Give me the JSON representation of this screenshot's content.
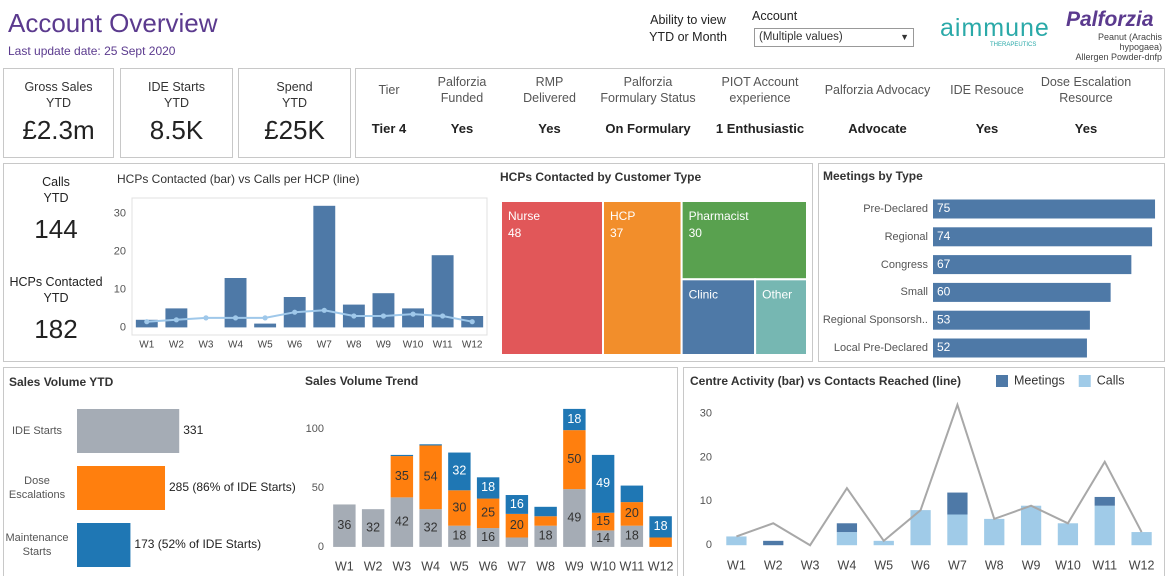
{
  "header": {
    "title": "Account Overview",
    "subtitle": "Last update date: 25 Sept 2020",
    "view_note": "Ability to view\nYTD or Month",
    "account_label": "Account",
    "account_value": "(Multiple values)",
    "logo_1": "aimmune",
    "logo_1_sub": "THERAPEUTICS",
    "logo_2": "Palforzia",
    "logo_2_sub": "Peanut (Arachis hypogaea)\nAllergen Powder-dnfp"
  },
  "kpis": [
    {
      "label": "Gross Sales\nYTD",
      "value": "£2.3m"
    },
    {
      "label": "IDE Starts\nYTD",
      "value": "8.5K"
    },
    {
      "label": "Spend\nYTD",
      "value": "£25K"
    }
  ],
  "attributes": [
    {
      "label": "Tier",
      "value": "Tier 4"
    },
    {
      "label": "Palforzia\nFunded",
      "value": "Yes"
    },
    {
      "label": "RMP\nDelivered",
      "value": "Yes"
    },
    {
      "label": "Palforzia\nFormulary Status",
      "value": "On Formulary"
    },
    {
      "label": "PIOT Account\nexperience",
      "value": "1 Enthusiastic"
    },
    {
      "label": "Palforzia Advocacy",
      "value": "Advocate"
    },
    {
      "label": "IDE Resouce",
      "value": "Yes"
    },
    {
      "label": "Dose Escalation\nResource",
      "value": "Yes"
    }
  ],
  "stats": [
    {
      "label": "Calls\nYTD",
      "value": 144
    },
    {
      "label": "HCPs Contacted\nYTD",
      "value": 182
    }
  ],
  "chart_data": [
    {
      "type": "bar",
      "title": "HCPs Contacted (bar) vs Calls per HCP (line)",
      "categories": [
        "W1",
        "W2",
        "W3",
        "W4",
        "W5",
        "W6",
        "W7",
        "W8",
        "W9",
        "W10",
        "W11",
        "W12"
      ],
      "series": [
        {
          "type": "bar",
          "color": "#4e79a7",
          "values": [
            2,
            5,
            0,
            13,
            1,
            8,
            32,
            6,
            9,
            5,
            19,
            3
          ]
        },
        {
          "type": "line",
          "color": "#9fc8ea",
          "markers": true,
          "values": [
            1.5,
            2,
            2.5,
            2.5,
            2.5,
            4,
            4.5,
            3,
            3,
            3.5,
            3,
            1.5
          ]
        }
      ],
      "ylim": [
        -2,
        33
      ],
      "yticks": [
        0,
        10,
        20,
        30
      ],
      "grid": false
    },
    {
      "type": "treemap",
      "title": "HCPs Contacted by Customer Type",
      "categories": [
        "Nurse",
        "HCP",
        "Pharmacist",
        "Clinic",
        "Other"
      ],
      "values": [
        48,
        37,
        30,
        17,
        12
      ],
      "value_labels": [
        "48",
        "37",
        "30",
        null,
        null
      ],
      "colors": [
        "#e15759",
        "#f28e2b",
        "#59a14f",
        "#4e79a7",
        "#76b7b2"
      ]
    },
    {
      "type": "bar",
      "orientation": "horizontal",
      "title": "Meetings by Type",
      "categories": [
        "Pre-Declared",
        "Regional",
        "Congress",
        "Small",
        "Regional Sponsorsh..",
        "Local Pre-Declared"
      ],
      "values": [
        75,
        74,
        67,
        60,
        53,
        52
      ],
      "color": "#4e79a7",
      "xlim": [
        0,
        76
      ]
    },
    {
      "type": "bar",
      "orientation": "horizontal",
      "title": "Sales Volume YTD",
      "categories": [
        "IDE Starts",
        "Dose\nEscalations",
        "Maintenance\nStarts"
      ],
      "values": [
        331,
        285,
        173
      ],
      "value_labels": [
        "331",
        "285 (86% of IDE Starts)",
        "173 (52% of IDE Starts)"
      ],
      "colors": [
        "#a5acb5",
        "#ff7f0e",
        "#1f77b4"
      ],
      "xlim": [
        0,
        340
      ]
    },
    {
      "type": "bar",
      "stacked": true,
      "title": "Sales Volume Trend",
      "categories": [
        "W1",
        "W2",
        "W3",
        "W4",
        "W5",
        "W6",
        "W7",
        "W8",
        "W9",
        "W10",
        "W11",
        "W12"
      ],
      "series": [
        {
          "type": "bar",
          "color": "#1f77b4",
          "label_color": "#ffffff",
          "values": [
            0,
            0,
            1,
            1,
            32,
            18,
            16,
            8,
            18,
            49,
            14,
            18
          ],
          "value_labels": [
            null,
            null,
            null,
            null,
            "32",
            "18",
            "16",
            null,
            "18",
            "49",
            null,
            "18"
          ]
        },
        {
          "type": "bar",
          "color": "#ff7f0e",
          "label_color": "#333333",
          "values": [
            0,
            0,
            35,
            54,
            30,
            25,
            20,
            8,
            50,
            15,
            20,
            8
          ],
          "value_labels": [
            null,
            null,
            "35",
            "54",
            "30",
            "25",
            "20",
            null,
            "50",
            "15",
            "20",
            null
          ]
        },
        {
          "type": "bar",
          "color": "#a5acb5",
          "label_color": "#333333",
          "values": [
            36,
            32,
            42,
            32,
            18,
            16,
            8,
            18,
            49,
            14,
            18,
            0
          ],
          "value_labels": [
            "36",
            "32",
            "42",
            "32",
            "18",
            "16",
            null,
            "18",
            "49",
            "14",
            "18",
            null
          ]
        }
      ],
      "ylim": [
        -6,
        122
      ],
      "yticks": [
        0,
        50,
        100
      ],
      "grid": false
    },
    {
      "type": "bar",
      "stacked": true,
      "title": "Centre Activity (bar) vs Contacts Reached (line)",
      "categories": [
        "W1",
        "W2",
        "W3",
        "W4",
        "W5",
        "W6",
        "W7",
        "W8",
        "W9",
        "W10",
        "W11",
        "W12"
      ],
      "series": [
        {
          "type": "bar",
          "name": "Meetings",
          "color": "#4e79a7",
          "values": [
            0,
            1,
            0,
            2,
            0,
            0,
            5,
            0,
            0,
            0,
            2,
            0
          ]
        },
        {
          "type": "bar",
          "name": "Calls",
          "color": "#a0cbe8",
          "values": [
            2,
            0,
            0,
            3,
            1,
            8,
            7,
            6,
            9,
            5,
            9,
            3
          ]
        },
        {
          "type": "line",
          "color": "#a8a8a8",
          "markers": false,
          "values": [
            2,
            5,
            0,
            13,
            1,
            8,
            32,
            6,
            9,
            5,
            19,
            3
          ]
        }
      ],
      "ylim": [
        -2,
        34
      ],
      "yticks": [
        0,
        10,
        20,
        30
      ],
      "grid": false,
      "legend": "top"
    }
  ]
}
